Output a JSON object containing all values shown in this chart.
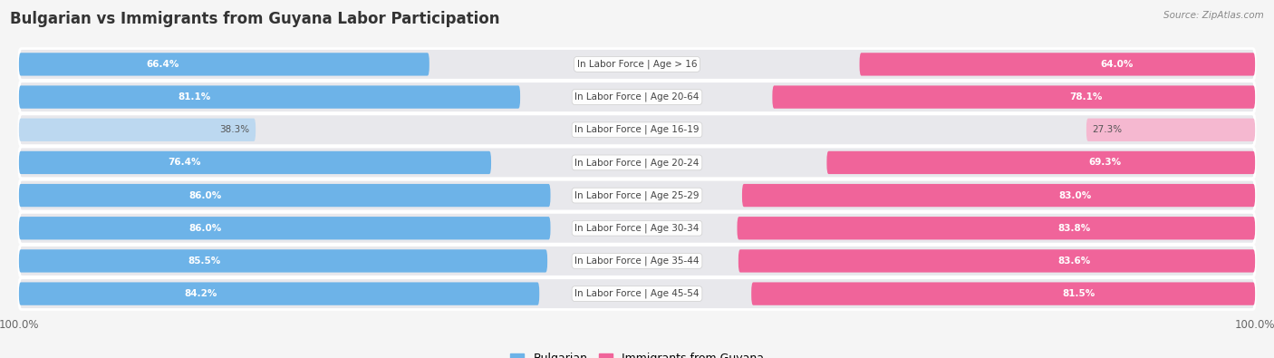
{
  "title": "Bulgarian vs Immigrants from Guyana Labor Participation",
  "source": "Source: ZipAtlas.com",
  "categories": [
    "In Labor Force | Age > 16",
    "In Labor Force | Age 20-64",
    "In Labor Force | Age 16-19",
    "In Labor Force | Age 20-24",
    "In Labor Force | Age 25-29",
    "In Labor Force | Age 30-34",
    "In Labor Force | Age 35-44",
    "In Labor Force | Age 45-54"
  ],
  "bulgarian_values": [
    66.4,
    81.1,
    38.3,
    76.4,
    86.0,
    86.0,
    85.5,
    84.2
  ],
  "guyana_values": [
    64.0,
    78.1,
    27.3,
    69.3,
    83.0,
    83.8,
    83.6,
    81.5
  ],
  "bulgarian_color": "#6db3e8",
  "bulgarian_color_light": "#bcd8f0",
  "guyana_color": "#f0649a",
  "guyana_color_light": "#f5b8d0",
  "row_bg_color": "#e8e8ec",
  "fig_bg_color": "#f5f5f5",
  "legend_bulgarian": "Bulgarian",
  "legend_guyana": "Immigrants from Guyana",
  "title_fontsize": 12,
  "label_fontsize": 7.5,
  "value_fontsize": 7.5,
  "center_label_bg": "#ffffff"
}
